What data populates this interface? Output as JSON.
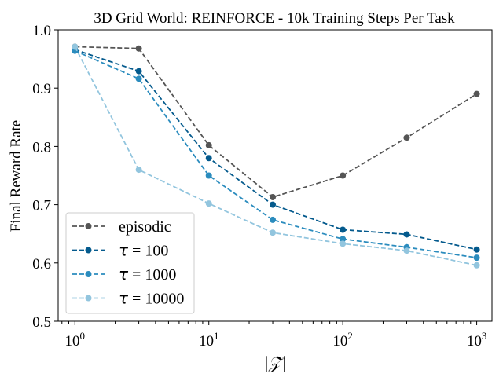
{
  "chart_data": {
    "type": "line",
    "title": "3D Grid World: REINFORCE - 10k Training Steps Per Task",
    "xlabel": "|𝒵|",
    "ylabel": "Final Reward Rate",
    "xscale": "log",
    "xlim": [
      0.75,
      1300
    ],
    "ylim": [
      0.5,
      1.0
    ],
    "x": [
      1,
      3,
      10,
      30,
      100,
      300,
      1000
    ],
    "xticks": [
      {
        "value": 1,
        "base": "10",
        "exp": "0"
      },
      {
        "value": 10,
        "base": "10",
        "exp": "1"
      },
      {
        "value": 100,
        "base": "10",
        "exp": "2"
      },
      {
        "value": 1000,
        "base": "10",
        "exp": "3"
      }
    ],
    "yticks": [
      {
        "value": 0.5,
        "label": "0.5"
      },
      {
        "value": 0.6,
        "label": "0.6"
      },
      {
        "value": 0.7,
        "label": "0.7"
      },
      {
        "value": 0.8,
        "label": "0.8"
      },
      {
        "value": 0.9,
        "label": "0.9"
      },
      {
        "value": 1.0,
        "label": "1.0"
      }
    ],
    "legend_position": "lower-left",
    "series": [
      {
        "name": "episodic",
        "symbol": "",
        "label": "episodic",
        "color": "#555555",
        "values": [
          0.971,
          0.968,
          0.802,
          0.713,
          0.75,
          0.815,
          0.89
        ]
      },
      {
        "name": "τ = 100",
        "symbol": "τ",
        "label": " = 100",
        "color": "#045a8d",
        "values": [
          0.966,
          0.929,
          0.78,
          0.7,
          0.657,
          0.649,
          0.623
        ]
      },
      {
        "name": "τ = 1000",
        "symbol": "τ",
        "label": " = 1000",
        "color": "#2b8cbe",
        "values": [
          0.964,
          0.916,
          0.75,
          0.674,
          0.641,
          0.627,
          0.609
        ]
      },
      {
        "name": "τ = 10000",
        "symbol": "τ",
        "label": " = 10000",
        "color": "#92c5de",
        "values": [
          0.971,
          0.76,
          0.702,
          0.652,
          0.633,
          0.621,
          0.596
        ]
      }
    ]
  }
}
